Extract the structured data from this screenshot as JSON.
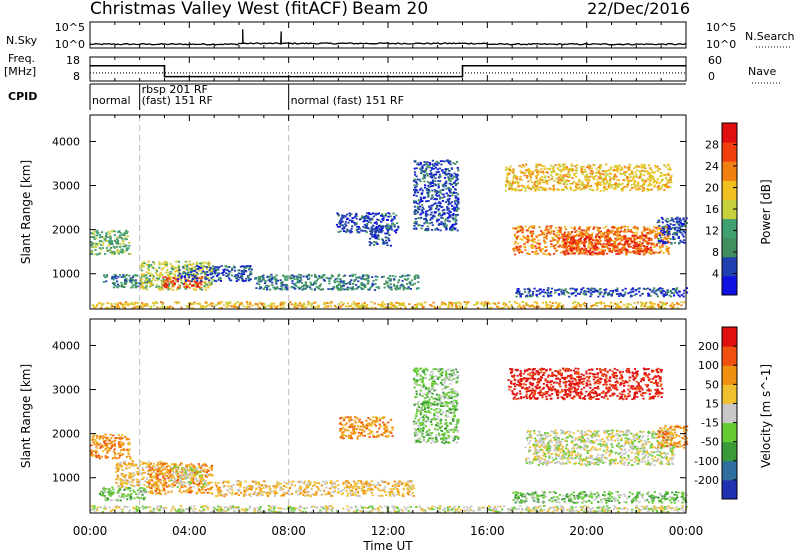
{
  "header": {
    "station": "Christmas Valley West (fitACF)",
    "beam": "Beam 20",
    "date": "22/Dec/2016"
  },
  "strip_labels": {
    "nsky": "N.Sky",
    "nsearch": "N.Search",
    "freq_top": "Freq.",
    "freq_unit": "[MHz]",
    "nave": "Nave",
    "cpid": "CPID",
    "nsky_ticks": [
      "10^5",
      "10^0"
    ],
    "nsearch_ticks": [
      "10^5",
      "10^0"
    ],
    "freq_ticks": [
      "18",
      "8"
    ],
    "nave_ticks": [
      "60",
      "0"
    ]
  },
  "cpid_segments": [
    {
      "start_hour": 0.0,
      "end_hour": 2.0,
      "lines": [
        "normal"
      ]
    },
    {
      "start_hour": 2.0,
      "end_hour": 8.0,
      "lines": [
        "rbsp 201 RF",
        "(fast) 151 RF"
      ]
    },
    {
      "start_hour": 8.0,
      "end_hour": 24.0,
      "lines": [
        "normal (fast) 151 RF"
      ]
    }
  ],
  "colors": {
    "power_scale": [
      "#1010e0",
      "#2040b0",
      "#3f8f5f",
      "#40a070",
      "#c8d040",
      "#f0c020",
      "#f08010",
      "#f04010",
      "#e01010"
    ],
    "velocity_scale": [
      "#1f30b0",
      "#2f6fa0",
      "#3a9a3a",
      "#66cc33",
      "#c8c8c8",
      "#f0c030",
      "#f09010",
      "#f05010",
      "#e01010"
    ],
    "dashed_line": "#bbbbbb"
  },
  "chart_data": {
    "type": "heatmap",
    "x_axis": {
      "label": "Time UT",
      "range_hours": [
        0,
        24
      ],
      "tick_hours": [
        0,
        4,
        8,
        12,
        16,
        20,
        24
      ],
      "tick_labels": [
        "00:00",
        "04:00",
        "08:00",
        "12:00",
        "16:00",
        "20:00",
        "00:00"
      ]
    },
    "nsky_trace": {
      "baseline_log10": 0.6,
      "spikes": [
        {
          "hour": 6.15,
          "log10": 3.6
        },
        {
          "hour": 7.7,
          "log10": 3.2
        }
      ]
    },
    "frequency_MHz": [
      {
        "start_hour": 0.0,
        "end_hour": 3.0,
        "value": 15.8
      },
      {
        "start_hour": 3.0,
        "end_hour": 15.0,
        "value": 9.4
      },
      {
        "start_hour": 15.0,
        "end_hour": 24.0,
        "value": 15.8
      }
    ],
    "nave_level": 22,
    "dashed_hours": [
      2.0,
      8.0
    ],
    "panels": [
      {
        "name": "power",
        "ylabel": "Slant Range [km]",
        "ylim": [
          200,
          4600
        ],
        "yticks": [
          1000,
          2000,
          3000,
          4000
        ],
        "colorbar": {
          "label": "Power [dB]",
          "tick_values": [
            4,
            8,
            12,
            16,
            20,
            24,
            28
          ],
          "tick_labels": [
            "4",
            "8",
            "12",
            "16",
            "20",
            "24",
            "28"
          ],
          "range": [
            0,
            32
          ]
        },
        "echo_regions": [
          {
            "hour": [
              0.0,
              1.6
            ],
            "km": [
              1450,
              2000
            ],
            "level": 3
          },
          {
            "hour": [
              0.5,
              2.5
            ],
            "km": [
              700,
              1000
            ],
            "level": 2
          },
          {
            "hour": [
              2.0,
              4.9
            ],
            "km": [
              650,
              1300
            ],
            "level": 4
          },
          {
            "hour": [
              2.9,
              4.5
            ],
            "km": [
              700,
              950
            ],
            "level": 7
          },
          {
            "hour": [
              3.5,
              6.5
            ],
            "km": [
              850,
              1200
            ],
            "level": 1
          },
          {
            "hour": [
              6.6,
              13.2
            ],
            "km": [
              650,
              1000
            ],
            "level": 2
          },
          {
            "hour": [
              0.0,
              24.0
            ],
            "km": [
              230,
              380
            ],
            "level": 5
          },
          {
            "hour": [
              9.9,
              12.4
            ],
            "km": [
              1950,
              2400
            ],
            "level": 1
          },
          {
            "hour": [
              11.2,
              12.1
            ],
            "km": [
              1650,
              2100
            ],
            "level": 1
          },
          {
            "hour": [
              13.0,
              14.8
            ],
            "km": [
              2000,
              3600
            ],
            "level": 1
          },
          {
            "hour": [
              16.7,
              23.4
            ],
            "km": [
              2900,
              3500
            ],
            "level": 5
          },
          {
            "hour": [
              17.0,
              23.3
            ],
            "km": [
              1450,
              2100
            ],
            "level": 6
          },
          {
            "hour": [
              19.0,
              22.6
            ],
            "km": [
              1450,
              1900
            ],
            "level": 7
          },
          {
            "hour": [
              17.0,
              24.0
            ],
            "km": [
              500,
              700
            ],
            "level": 1
          },
          {
            "hour": [
              22.8,
              24.0
            ],
            "km": [
              1700,
              2300
            ],
            "level": 1
          }
        ]
      },
      {
        "name": "velocity",
        "ylabel": "Slant Range [km]",
        "ylim": [
          200,
          4600
        ],
        "yticks": [
          1000,
          2000,
          3000,
          4000
        ],
        "colorbar": {
          "label": "Velocity [m s^-1]",
          "tick_values": [
            -200,
            -100,
            -50,
            -15,
            15,
            50,
            100,
            200
          ],
          "tick_labels": [
            "-200",
            "-100",
            "-50",
            "-15",
            "15",
            "50",
            "100",
            "200"
          ],
          "range": [
            -250,
            250
          ]
        },
        "echo_regions": [
          {
            "hour": [
              0.0,
              1.6
            ],
            "km": [
              1450,
              2000
            ],
            "level": 6
          },
          {
            "hour": [
              0.3,
              2.2
            ],
            "km": [
              500,
              800
            ],
            "level": 3
          },
          {
            "hour": [
              1.0,
              3.0
            ],
            "km": [
              800,
              1400
            ],
            "level": 5
          },
          {
            "hour": [
              2.3,
              4.9
            ],
            "km": [
              650,
              1350
            ],
            "level": 6
          },
          {
            "hour": [
              3.2,
              4.7
            ],
            "km": [
              800,
              1300
            ],
            "level": 4
          },
          {
            "hour": [
              5.0,
              13.0
            ],
            "km": [
              600,
              950
            ],
            "level": 5
          },
          {
            "hour": [
              0.0,
              24.0
            ],
            "km": [
              230,
              380
            ],
            "level": 4
          },
          {
            "hour": [
              10.0,
              12.2
            ],
            "km": [
              1900,
              2400
            ],
            "level": 6
          },
          {
            "hour": [
              13.0,
              14.8
            ],
            "km": [
              1800,
              3500
            ],
            "level": 3
          },
          {
            "hour": [
              16.8,
              23.0
            ],
            "km": [
              2800,
              3500
            ],
            "level": 8
          },
          {
            "hour": [
              17.5,
              23.5
            ],
            "km": [
              1300,
              2100
            ],
            "level": 4
          },
          {
            "hour": [
              22.8,
              24.0
            ],
            "km": [
              1700,
              2200
            ],
            "level": 6
          },
          {
            "hour": [
              17.0,
              24.0
            ],
            "km": [
              450,
              700
            ],
            "level": 3
          }
        ]
      }
    ]
  }
}
